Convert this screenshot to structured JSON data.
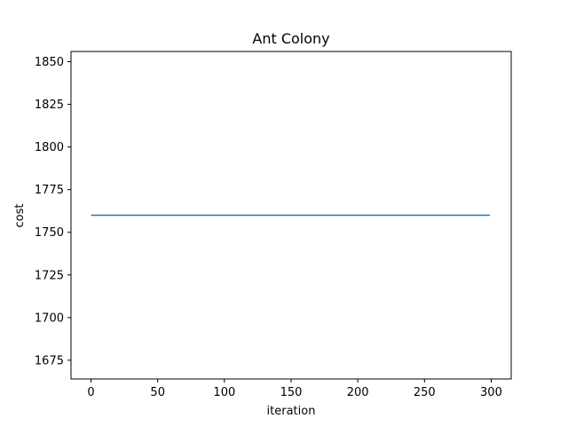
{
  "chart_data": {
    "type": "line",
    "title": "Ant Colony",
    "xlabel": "iteration",
    "ylabel": "cost",
    "xlim": [
      -15,
      315
    ],
    "ylim": [
      1664,
      1856
    ],
    "xticks": [
      0,
      50,
      100,
      150,
      200,
      250,
      300
    ],
    "yticks": [
      1675,
      1700,
      1725,
      1750,
      1775,
      1800,
      1825,
      1850
    ],
    "grid": false,
    "series": [
      {
        "color": "#1f77b4",
        "x": [
          0,
          299
        ],
        "y": [
          1760,
          1760
        ]
      }
    ]
  }
}
